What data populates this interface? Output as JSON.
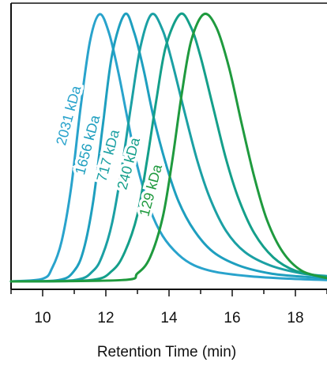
{
  "chart_data": {
    "type": "line",
    "title": "",
    "xlabel": "Retention Time (min)",
    "ylabel": "",
    "xlim": [
      9,
      19
    ],
    "ylim": [
      0,
      1.0
    ],
    "x_ticks": [
      10,
      12,
      14,
      16,
      18
    ],
    "grid": false,
    "legend": "none",
    "series": [
      {
        "name": "2031 kDa",
        "color": "#29a3cc",
        "peak_x": 11.8,
        "x": [
          9.0,
          10.0,
          10.3,
          10.6,
          10.9,
          11.2,
          11.5,
          11.8,
          12.1,
          12.4,
          12.7,
          13.0,
          13.4,
          13.8,
          14.3,
          14.8,
          15.5,
          16.5,
          17.5,
          19.0
        ],
        "values": [
          0.0,
          0.01,
          0.05,
          0.15,
          0.35,
          0.65,
          0.9,
          1.0,
          0.93,
          0.78,
          0.6,
          0.43,
          0.27,
          0.17,
          0.1,
          0.06,
          0.035,
          0.02,
          0.012,
          0.005
        ]
      },
      {
        "name": "1656 kDa",
        "color": "#1e9fbf",
        "peak_x": 12.6,
        "x": [
          9.0,
          10.5,
          11.0,
          11.3,
          11.6,
          11.9,
          12.2,
          12.6,
          12.9,
          13.2,
          13.5,
          13.9,
          14.3,
          14.8,
          15.4,
          16.2,
          17.2,
          18.2,
          19.0
        ],
        "values": [
          0.0,
          0.005,
          0.04,
          0.12,
          0.3,
          0.58,
          0.85,
          1.0,
          0.93,
          0.79,
          0.62,
          0.44,
          0.3,
          0.19,
          0.11,
          0.06,
          0.03,
          0.018,
          0.012
        ]
      },
      {
        "name": "717 kDa",
        "color": "#1ba0a4",
        "peak_x": 13.45,
        "x": [
          9.0,
          11.0,
          11.6,
          11.9,
          12.2,
          12.5,
          12.8,
          13.1,
          13.45,
          13.8,
          14.1,
          14.5,
          14.9,
          15.3,
          15.8,
          16.4,
          17.2,
          18.2,
          19.0
        ],
        "values": [
          0.0,
          0.005,
          0.04,
          0.1,
          0.22,
          0.42,
          0.66,
          0.88,
          1.0,
          0.94,
          0.82,
          0.63,
          0.45,
          0.31,
          0.19,
          0.11,
          0.06,
          0.03,
          0.02
        ]
      },
      {
        "name": "240 kDa",
        "color": "#149f8a",
        "peak_x": 14.35,
        "x": [
          9.0,
          11.5,
          12.2,
          12.6,
          13.0,
          13.3,
          13.6,
          13.9,
          14.35,
          14.7,
          15.0,
          15.4,
          15.8,
          16.2,
          16.7,
          17.3,
          18.0,
          19.0
        ],
        "values": [
          0.0,
          0.005,
          0.04,
          0.11,
          0.25,
          0.45,
          0.68,
          0.88,
          1.0,
          0.95,
          0.84,
          0.65,
          0.46,
          0.31,
          0.18,
          0.09,
          0.04,
          0.015
        ]
      },
      {
        "name": "129 kDa",
        "color": "#1f9a3e",
        "peak_x": 15.1,
        "x": [
          9.0,
          12.5,
          13.0,
          13.4,
          13.8,
          14.1,
          14.4,
          14.7,
          15.1,
          15.5,
          15.9,
          16.3,
          16.7,
          17.1,
          17.6,
          18.2,
          19.0
        ],
        "values": [
          0.0,
          0.005,
          0.03,
          0.09,
          0.24,
          0.45,
          0.7,
          0.9,
          1.0,
          0.95,
          0.8,
          0.59,
          0.39,
          0.23,
          0.11,
          0.04,
          0.012
        ]
      }
    ]
  }
}
